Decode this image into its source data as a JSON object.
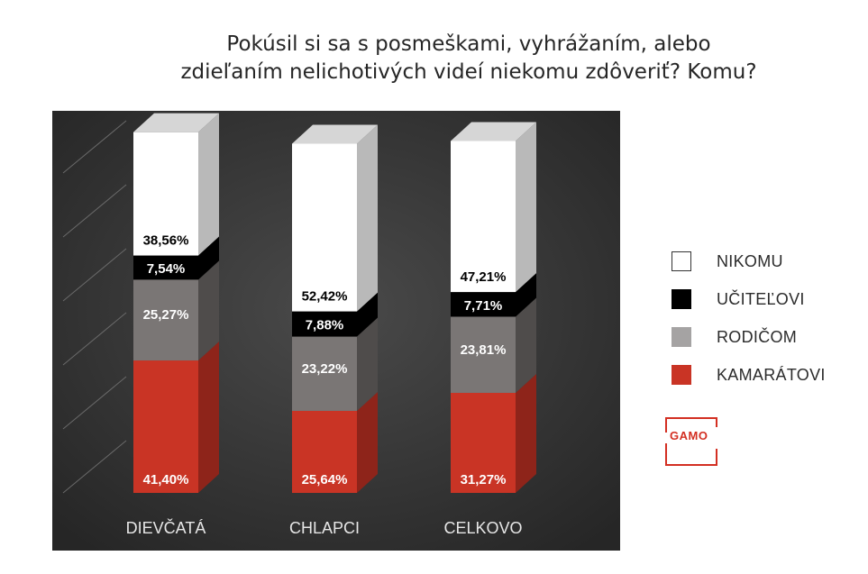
{
  "title_lines": [
    "Pokúsil si sa s posmeškami, vyhrážaním, alebo",
    "zdieľaním nelichotivých videí niekomu zdôveriť? Komu?"
  ],
  "chart_data": {
    "type": "bar",
    "stacked": true,
    "three_d": true,
    "categories": [
      "DIEVČATÁ",
      "CHLAPCI",
      "CELKOVO"
    ],
    "series": [
      {
        "name": "KAMARÁTOVI",
        "color": "#c93425",
        "values": [
          41.4,
          25.64,
          31.27
        ],
        "labels": [
          "41,40%",
          "25,64%",
          "31,27%"
        ]
      },
      {
        "name": "RODIČOM",
        "color": "#7a7675",
        "values": [
          25.27,
          23.22,
          23.81
        ],
        "labels": [
          "25,27%",
          "23,22%",
          "23,81%"
        ]
      },
      {
        "name": "UČITEĽOVI",
        "color": "#000000",
        "values": [
          7.54,
          7.88,
          7.71
        ],
        "labels": [
          "7,54%",
          "7,88%",
          "7,71%"
        ]
      },
      {
        "name": "NIKOMU",
        "color": "#ffffff",
        "values": [
          38.56,
          52.42,
          47.21
        ],
        "labels": [
          "38,56%",
          "52,42%",
          "47,21%"
        ]
      }
    ],
    "legend_position": "right",
    "background": "#3a3a3a",
    "grid": true
  },
  "legend": [
    {
      "label": "NIKOMU",
      "color": "#ffffff"
    },
    {
      "label": "UČITEĽOVI",
      "color": "#000000"
    },
    {
      "label": "RODIČOM",
      "color": "#a5a3a3"
    },
    {
      "label": "KAMARÁTOVI",
      "color": "#c93425"
    }
  ],
  "logo": {
    "text": "GAMO",
    "color": "#d32f22"
  }
}
